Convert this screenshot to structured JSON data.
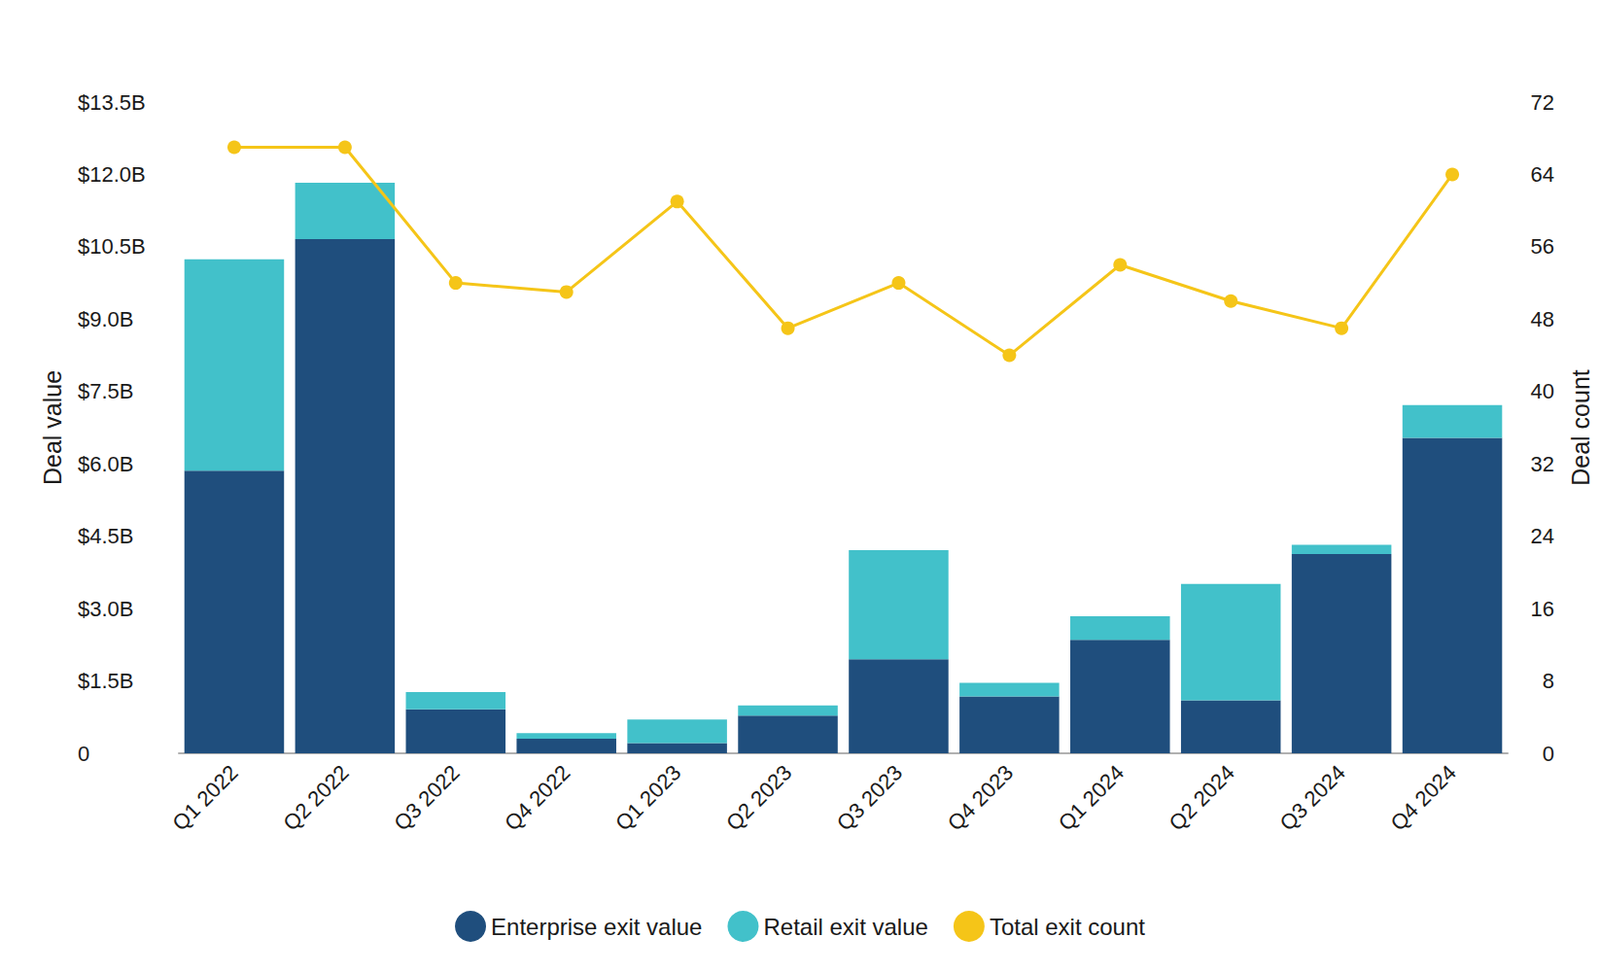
{
  "chart_data": {
    "type": "bar",
    "stacked": true,
    "grid": false,
    "legend": "bottom",
    "y_label": "Deal value",
    "y2_label": "Deal count",
    "categories": [
      "Q1 2022",
      "Q2 2022",
      "Q3 2022",
      "Q4 2022",
      "Q1 2023",
      "Q2 2023",
      "Q3 2023",
      "Q4 2023",
      "Q1 2024",
      "Q2 2024",
      "Q3 2024",
      "Q4 2024"
    ],
    "series": [
      {
        "name": "Enterprise exit value",
        "type": "bar",
        "color": "#1f4e7d",
        "values": [
          5.86,
          10.66,
          0.91,
          0.3,
          0.21,
          0.78,
          1.95,
          1.18,
          2.35,
          1.1,
          4.13,
          6.54
        ]
      },
      {
        "name": "Retail exit value",
        "type": "bar",
        "color": "#42c1ca",
        "values": [
          4.38,
          1.17,
          0.36,
          0.12,
          0.49,
          0.21,
          2.26,
          0.28,
          0.49,
          2.41,
          0.19,
          0.68
        ]
      },
      {
        "name": "Total exit count",
        "type": "line",
        "axis": "y2",
        "color": "#f5c518",
        "marker": "circle",
        "line_style": "solid",
        "values": [
          67,
          67,
          52,
          51,
          61,
          47,
          52,
          44,
          54,
          50,
          47,
          64
        ]
      }
    ],
    "ylim": [
      0,
      13.5
    ],
    "yticks": [
      0,
      {
        "value": 1.5,
        "label": "$1.5B"
      },
      {
        "value": 3,
        "label": "$3.0B"
      },
      {
        "value": 4.5,
        "label": "$4.5B"
      },
      {
        "value": 6,
        "label": "$6.0B"
      },
      {
        "value": 7.5,
        "label": "$7.5B"
      },
      {
        "value": 9,
        "label": "$9.0B"
      },
      {
        "value": 10.5,
        "label": "$10.5B"
      },
      {
        "value": 12,
        "label": "$12.0B"
      },
      {
        "value": 13.5,
        "label": "$13.5B"
      }
    ],
    "y2lim": [
      0,
      72
    ],
    "y2ticks": [
      0,
      8,
      16,
      24,
      32,
      40,
      48,
      56,
      64,
      72
    ]
  }
}
